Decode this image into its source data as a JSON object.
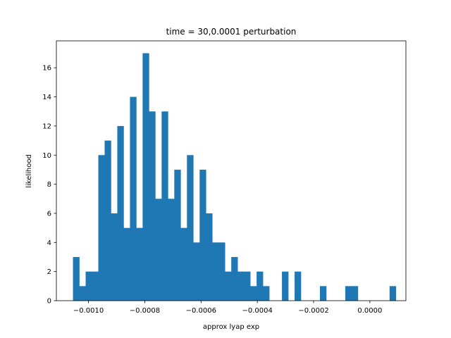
{
  "chart_data": {
    "type": "bar",
    "title": "time = 30,0.0001 perturbation",
    "xlabel": "approx lyap exp",
    "ylabel": "likelihood",
    "bar_color": "#1f77b4",
    "xlim": [
      -0.001114,
      0.000128
    ],
    "ylim": [
      0,
      17.85
    ],
    "bin_start": -0.001055,
    "bin_width": 2.25e-05,
    "counts": [
      3,
      1,
      2,
      2,
      10,
      11,
      6,
      12,
      5,
      14,
      5,
      17,
      13,
      7,
      13,
      7,
      9,
      5,
      10,
      4,
      9,
      6,
      4,
      4,
      2,
      3,
      2,
      2,
      1,
      2,
      1,
      0,
      0,
      2,
      0,
      2,
      0,
      0,
      0,
      1,
      0,
      0,
      0,
      1,
      1,
      0,
      0,
      0,
      0,
      0,
      1
    ],
    "xticks": [
      -0.001,
      -0.0008,
      -0.0006,
      -0.0004,
      -0.0002,
      0.0
    ],
    "xtick_labels": [
      "−0.0010",
      "−0.0008",
      "−0.0006",
      "−0.0004",
      "−0.0002",
      "0.0000"
    ],
    "yticks": [
      0,
      2,
      4,
      6,
      8,
      10,
      12,
      14,
      16
    ],
    "ytick_labels": [
      "0",
      "2",
      "4",
      "6",
      "8",
      "10",
      "12",
      "14",
      "16"
    ]
  }
}
